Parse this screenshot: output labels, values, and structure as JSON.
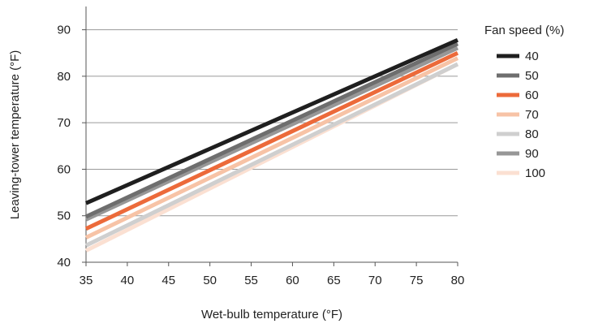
{
  "chart_data": {
    "type": "line",
    "title": "",
    "xlabel": "Wet-bulb temperature (°F)",
    "ylabel": "Leaving-tower temperature (°F)",
    "xlim": [
      35,
      80
    ],
    "ylim": [
      40,
      95
    ],
    "x_ticks": [
      35,
      40,
      45,
      50,
      55,
      60,
      65,
      70,
      75,
      80
    ],
    "y_ticks": [
      40,
      50,
      60,
      70,
      80,
      90
    ],
    "grid": "horizontal",
    "legend": {
      "title": "Fan speed (%)",
      "position": "right"
    },
    "x": [
      35,
      80
    ],
    "series": [
      {
        "name": "40",
        "color": "#1f1f1f",
        "values": [
          52.7,
          87.8
        ]
      },
      {
        "name": "50",
        "color": "#6e6e6e",
        "values": [
          49.8,
          87.0
        ]
      },
      {
        "name": "60",
        "color": "#ec6a3a",
        "values": [
          47.2,
          85.0
        ]
      },
      {
        "name": "70",
        "color": "#f7c3a6",
        "values": [
          45.3,
          83.9
        ]
      },
      {
        "name": "80",
        "color": "#cfcfcf",
        "values": [
          43.6,
          82.6
        ]
      },
      {
        "name": "90",
        "color": "#979797",
        "values": [
          49.2,
          86.1
        ]
      },
      {
        "name": "100",
        "color": "#fbe0d2",
        "values": [
          42.5,
          82.6
        ]
      }
    ]
  }
}
